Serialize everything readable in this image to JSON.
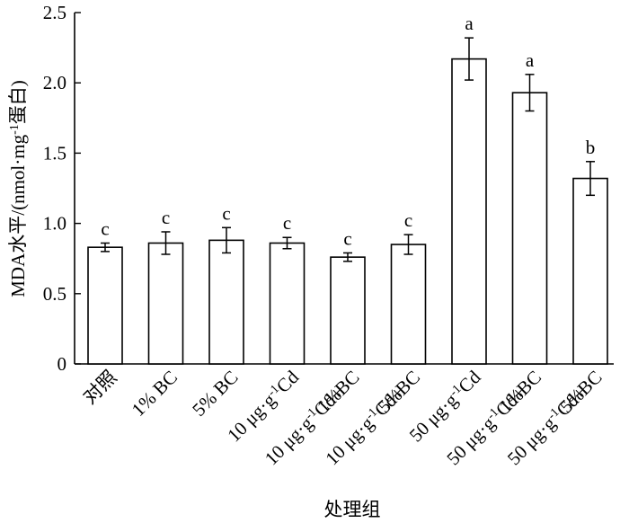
{
  "chart_data": {
    "type": "bar",
    "title": "",
    "xlabel": "处理组",
    "ylabel": "MDA水平/(nmol·mg⁻¹蛋白)",
    "ylabel_parts": {
      "main": "MDA水平/(nmol",
      "dot": "·",
      "unit": "mg",
      "sup": "-1",
      "tail": "蛋白)"
    },
    "ylim": [
      0,
      2.5
    ],
    "yticks": [
      0,
      0.5,
      1.0,
      1.5,
      2.0,
      2.5
    ],
    "ytick_labels": [
      "0",
      "0.5",
      "1.0",
      "1.5",
      "2.0",
      "2.5"
    ],
    "grid": false,
    "categories": [
      {
        "lines": [
          [
            {
              "t": "对照"
            }
          ]
        ]
      },
      {
        "lines": [
          [
            {
              "t": "1% BC"
            }
          ]
        ]
      },
      {
        "lines": [
          [
            {
              "t": "5% BC"
            }
          ]
        ]
      },
      {
        "lines": [
          [
            {
              "t": "10 μg·g"
            },
            {
              "t": "-1",
              "sup": true
            },
            {
              "t": "Cd"
            }
          ]
        ]
      },
      {
        "lines": [
          [
            {
              "t": "10 μg·g"
            },
            {
              "t": "-1",
              "sup": true
            },
            {
              "t": "Cd+"
            }
          ],
          [
            {
              "t": "1%BC"
            }
          ]
        ]
      },
      {
        "lines": [
          [
            {
              "t": "10 μg·g"
            },
            {
              "t": "-1",
              "sup": true
            },
            {
              "t": "Cd+"
            }
          ],
          [
            {
              "t": "5%BC"
            }
          ]
        ]
      },
      {
        "lines": [
          [
            {
              "t": "50 μg·g"
            },
            {
              "t": "-1",
              "sup": true
            },
            {
              "t": "Cd"
            }
          ]
        ]
      },
      {
        "lines": [
          [
            {
              "t": "50 μg·g"
            },
            {
              "t": "-1",
              "sup": true
            },
            {
              "t": "Cd+"
            }
          ],
          [
            {
              "t": "1%BC"
            }
          ]
        ]
      },
      {
        "lines": [
          [
            {
              "t": "50 μg·g"
            },
            {
              "t": "-1",
              "sup": true
            },
            {
              "t": "Cd+"
            }
          ],
          [
            {
              "t": "5%BC"
            }
          ]
        ]
      }
    ],
    "values": [
      0.83,
      0.86,
      0.88,
      0.86,
      0.76,
      0.85,
      2.17,
      1.93,
      1.32
    ],
    "errors": [
      0.03,
      0.08,
      0.09,
      0.04,
      0.03,
      0.07,
      0.15,
      0.13,
      0.12
    ],
    "significance": [
      "c",
      "c",
      "c",
      "c",
      "c",
      "c",
      "a",
      "a",
      "b"
    ]
  }
}
